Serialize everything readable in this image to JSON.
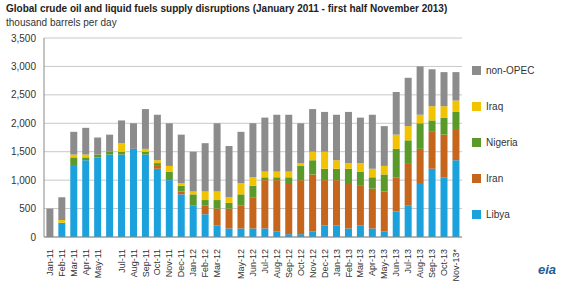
{
  "chart_data": {
    "type": "bar",
    "title": "Global crude oil and liquid fuels supply disruptions (January 2011 - first half November 2013)",
    "subtitle": "thousand barrels per day",
    "logo": "eia",
    "stacked": true,
    "grid": true,
    "legend": "right",
    "categories": [
      "Jan-11",
      "Feb-11",
      "Mar-11",
      "Apr-11",
      "May-11",
      null,
      "Jul-11",
      "Aug-11",
      "Sep-11",
      "Oct-11",
      "Nov-11",
      "Dec-11",
      "Jan-12",
      "Feb-12",
      "Mar-12",
      null,
      "May-12",
      "Jun-12",
      "Jul-12",
      "Aug-12",
      "Sep-12",
      "Oct-12",
      "Nov-12",
      "Dec-12",
      "Jan-13",
      "Feb-13",
      "Mar-13",
      "Apr-13",
      "May-13",
      "Jun-13",
      "Jul-13",
      "Aug-13",
      "Sep-13",
      "Oct-13",
      "Nov-13*"
    ],
    "ylim": [
      0,
      3500
    ],
    "yticks": [
      0,
      500,
      {
        "value": 1000,
        "label": "1,000"
      },
      {
        "value": 1500,
        "label": "1,500"
      },
      {
        "value": 2000,
        "label": "2,000"
      },
      {
        "value": 2500,
        "label": "2,500"
      },
      {
        "value": 3000,
        "label": "3,000"
      },
      {
        "value": 3500,
        "label": "3,500"
      }
    ],
    "series": [
      {
        "name": "Libya",
        "color": "#1ba1dc",
        "values": [
          0,
          250,
          1250,
          1350,
          1400,
          1450,
          1450,
          1550,
          1450,
          1200,
          1000,
          750,
          550,
          400,
          200,
          150,
          150,
          150,
          150,
          100,
          50,
          50,
          100,
          200,
          200,
          150,
          200,
          150,
          100,
          450,
          550,
          950,
          1200,
          1050,
          1350
        ]
      },
      {
        "name": "Iran",
        "color": "#c5661c",
        "values": [
          0,
          0,
          0,
          0,
          0,
          0,
          0,
          0,
          0,
          50,
          0,
          50,
          0,
          150,
          300,
          350,
          400,
          550,
          850,
          900,
          900,
          950,
          1000,
          800,
          800,
          800,
          700,
          700,
          700,
          600,
          750,
          600,
          650,
          750,
          550
        ]
      },
      {
        "name": "Nigeria",
        "color": "#5a9a2a",
        "values": [
          0,
          0,
          150,
          50,
          50,
          50,
          50,
          0,
          50,
          50,
          150,
          100,
          200,
          100,
          150,
          100,
          200,
          200,
          50,
          50,
          100,
          250,
          250,
          200,
          200,
          250,
          250,
          200,
          300,
          500,
          400,
          450,
          200,
          300,
          300
        ]
      },
      {
        "name": "Iraq",
        "color": "#f2c300",
        "values": [
          0,
          50,
          50,
          50,
          0,
          0,
          150,
          0,
          50,
          50,
          100,
          50,
          50,
          150,
          150,
          100,
          200,
          150,
          100,
          100,
          100,
          50,
          150,
          300,
          150,
          100,
          150,
          150,
          150,
          250,
          250,
          150,
          250,
          200,
          200
        ]
      },
      {
        "name": "non-OPEC",
        "color": "#8c8c8c",
        "values": [
          500,
          400,
          400,
          470,
          300,
          300,
          400,
          450,
          700,
          800,
          750,
          850,
          700,
          850,
          1200,
          900,
          900,
          950,
          950,
          1000,
          1000,
          700,
          750,
          700,
          800,
          900,
          800,
          950,
          700,
          750,
          850,
          850,
          650,
          600,
          500
        ]
      }
    ]
  }
}
